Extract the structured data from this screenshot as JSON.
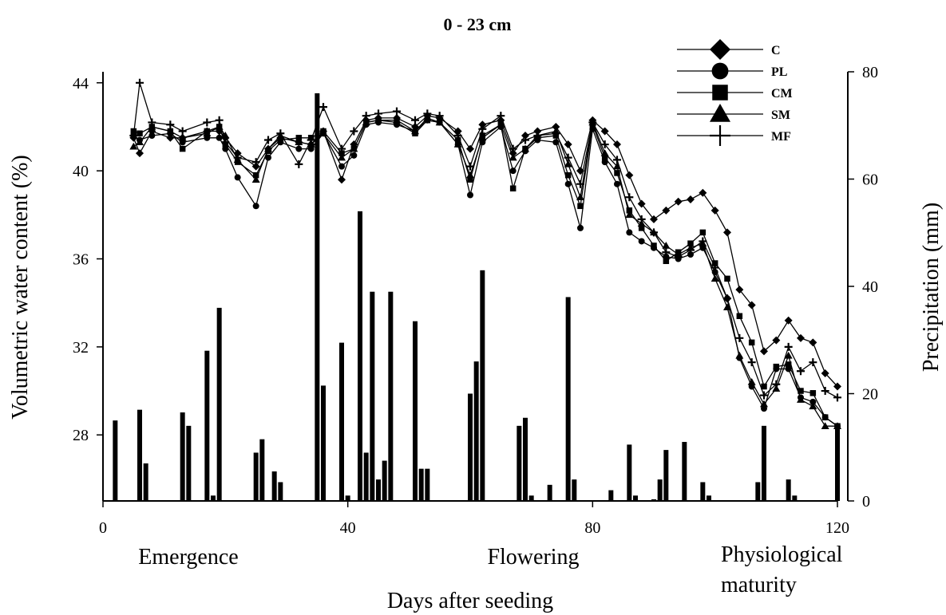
{
  "chart_data": {
    "type": "line",
    "title": "0 - 23 cm",
    "xlabel": "Days after seeding",
    "ylabel": "Volumetric water content (%)",
    "y2label": "Precipitation (mm)",
    "xlim": [
      0,
      120
    ],
    "ylim": [
      25,
      44.5
    ],
    "y2lim": [
      0,
      80
    ],
    "x_ticks": [
      "0",
      "40",
      "80",
      "120"
    ],
    "y_ticks": [
      "28",
      "32",
      "36",
      "40",
      "44"
    ],
    "y2_ticks": [
      "0",
      "20",
      "40",
      "60",
      "80"
    ],
    "legend_position": "top-right",
    "stage_labels": [
      "Emergence",
      "Flowering",
      "Physiological",
      "maturity"
    ],
    "x": [
      5,
      6,
      8,
      11,
      13,
      17,
      19,
      20,
      22,
      25,
      27,
      29,
      32,
      34,
      36,
      39,
      41,
      43,
      45,
      48,
      51,
      53,
      55,
      58,
      60,
      62,
      65,
      67,
      69,
      71,
      74,
      76,
      78,
      80,
      82,
      84,
      86,
      88,
      90,
      92,
      94,
      96,
      98,
      100,
      102,
      104,
      106,
      108,
      110,
      112,
      114,
      116,
      118,
      120
    ],
    "series": [
      {
        "name": "C",
        "marker": "diamond",
        "values": [
          41.5,
          40.8,
          41.8,
          41.5,
          41.5,
          41.8,
          41.8,
          41.5,
          40.8,
          40.2,
          41.0,
          41.5,
          41.3,
          41.2,
          41.8,
          39.6,
          41.2,
          42.3,
          42.4,
          42.4,
          42.0,
          42.5,
          42.4,
          41.8,
          41.0,
          42.1,
          42.3,
          40.8,
          41.6,
          41.8,
          42.0,
          41.2,
          40.0,
          42.3,
          41.8,
          41.2,
          39.8,
          38.5,
          37.8,
          38.2,
          38.6,
          38.7,
          39.0,
          38.2,
          37.2,
          34.6,
          33.9,
          31.8,
          32.3,
          33.2,
          32.4,
          32.2,
          30.8,
          30.2
        ]
      },
      {
        "name": "PL",
        "marker": "circle",
        "values": [
          41.6,
          41.4,
          41.6,
          41.7,
          41.3,
          41.5,
          41.5,
          41.0,
          39.7,
          38.4,
          40.6,
          41.3,
          41.0,
          41.0,
          41.7,
          40.2,
          40.7,
          42.1,
          42.2,
          42.1,
          41.8,
          42.3,
          42.2,
          41.2,
          38.9,
          41.3,
          42.0,
          40.0,
          40.9,
          41.4,
          41.3,
          39.4,
          37.4,
          41.9,
          40.4,
          39.4,
          37.2,
          36.8,
          36.5,
          36.1,
          36.0,
          36.2,
          36.5,
          35.4,
          34.2,
          31.5,
          30.2,
          29.2,
          31.0,
          31.0,
          29.7,
          29.5,
          28.8,
          28.4
        ]
      },
      {
        "name": "CM",
        "marker": "square",
        "values": [
          41.8,
          41.7,
          42.0,
          41.8,
          41.0,
          41.8,
          42.0,
          41.2,
          40.4,
          39.8,
          40.9,
          41.4,
          41.5,
          41.5,
          41.8,
          40.8,
          41.0,
          42.2,
          42.3,
          42.2,
          41.7,
          42.3,
          42.2,
          41.4,
          39.6,
          41.6,
          42.1,
          39.2,
          41.0,
          41.5,
          41.6,
          39.8,
          38.4,
          42.1,
          40.6,
          39.9,
          38.2,
          37.4,
          36.6,
          35.9,
          36.3,
          36.7,
          37.2,
          35.8,
          35.1,
          33.4,
          32.2,
          30.2,
          31.1,
          31.2,
          30.0,
          29.9,
          28.8,
          28.4
        ]
      },
      {
        "name": "SM",
        "marker": "triangle",
        "values": [
          41.1,
          41.3,
          42.0,
          41.8,
          41.5,
          41.7,
          42.0,
          41.6,
          40.5,
          39.6,
          41.0,
          41.6,
          41.3,
          41.2,
          41.7,
          40.6,
          41.0,
          42.2,
          42.3,
          42.3,
          41.8,
          42.4,
          42.2,
          41.2,
          39.8,
          41.5,
          42.1,
          40.6,
          41.0,
          41.6,
          41.8,
          40.3,
          38.8,
          42.2,
          40.8,
          40.2,
          38.0,
          37.6,
          37.2,
          36.6,
          36.2,
          36.5,
          36.7,
          35.1,
          33.8,
          31.6,
          30.4,
          29.4,
          30.1,
          31.6,
          29.6,
          29.3,
          28.4,
          28.4
        ]
      },
      {
        "name": "MF",
        "marker": "plus",
        "values": [
          41.6,
          44.0,
          42.2,
          42.1,
          41.8,
          42.2,
          42.3,
          41.3,
          40.6,
          40.4,
          41.4,
          41.7,
          40.3,
          41.4,
          42.9,
          41.0,
          41.8,
          42.5,
          42.6,
          42.7,
          42.3,
          42.6,
          42.5,
          41.6,
          40.2,
          41.9,
          42.5,
          41.0,
          41.4,
          41.6,
          41.7,
          40.6,
          39.4,
          42.2,
          41.2,
          40.5,
          38.8,
          37.8,
          37.2,
          36.3,
          36.1,
          36.4,
          36.8,
          35.6,
          34.2,
          32.4,
          31.3,
          29.8,
          30.3,
          32.0,
          30.9,
          31.3,
          30.0,
          29.7
        ]
      }
    ],
    "precipitation": {
      "x": [
        2,
        6,
        7,
        13,
        14,
        17,
        18,
        19,
        25,
        26,
        28,
        29,
        35,
        36,
        39,
        40,
        42,
        43,
        44,
        45,
        46,
        47,
        51,
        52,
        53,
        60,
        61,
        62,
        68,
        69,
        70,
        73,
        76,
        77,
        83,
        86,
        87,
        90,
        91,
        92,
        95,
        98,
        99,
        107,
        108,
        112,
        113,
        120
      ],
      "values": [
        15,
        17,
        7,
        16.5,
        14,
        28,
        1,
        36,
        9,
        11.5,
        5.5,
        3.5,
        76,
        21.5,
        29.5,
        1,
        54,
        9,
        39,
        4,
        7.5,
        39,
        33.5,
        6,
        6,
        20,
        26,
        43,
        14,
        15.5,
        1,
        3,
        38,
        4,
        2,
        10.5,
        1,
        0.3,
        4,
        9.5,
        11,
        3.5,
        1,
        3.5,
        14,
        4,
        1,
        14
      ]
    }
  }
}
